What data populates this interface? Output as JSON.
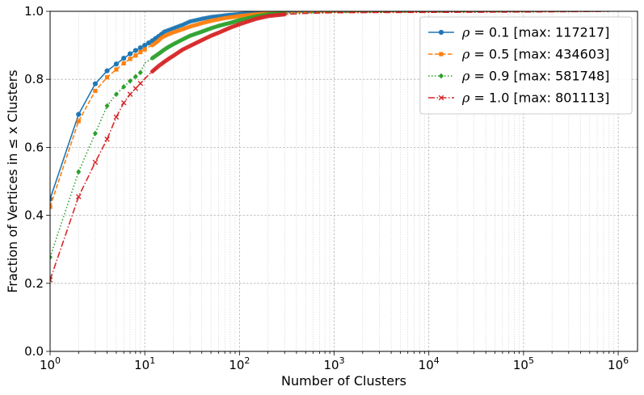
{
  "chart_data": {
    "type": "line",
    "xlabel": "Number of Clusters",
    "ylabel": "Fraction of Vertices in ≤ x Clusters",
    "xscale": "log",
    "xlim": [
      1,
      1600000
    ],
    "ylim": [
      0.0,
      1.0
    ],
    "grid": "major and minor",
    "legend_position": "top-right",
    "x_tick_labels": [
      {
        "base": "10",
        "exp": "0",
        "value": 1
      },
      {
        "base": "10",
        "exp": "1",
        "value": 10
      },
      {
        "base": "10",
        "exp": "2",
        "value": 100
      },
      {
        "base": "10",
        "exp": "3",
        "value": 1000
      },
      {
        "base": "10",
        "exp": "4",
        "value": 10000
      },
      {
        "base": "10",
        "exp": "5",
        "value": 100000
      },
      {
        "base": "10",
        "exp": "6",
        "value": 1000000
      }
    ],
    "y_ticks": [
      {
        "label": "0.0",
        "value": 0.0
      },
      {
        "label": "0.2",
        "value": 0.2
      },
      {
        "label": "0.4",
        "value": 0.4
      },
      {
        "label": "0.6",
        "value": 0.6
      },
      {
        "label": "0.8",
        "value": 0.8
      },
      {
        "label": "1.0",
        "value": 1.0
      }
    ],
    "series": [
      {
        "name": "ρ = 0.1 [max: 117217]",
        "legend_symbol": "ρ",
        "legend_rest": " = 0.1 [max: 117217]",
        "color": "#1f77b4",
        "dash": "solid",
        "marker": "circle",
        "points": [
          [
            1,
            0.448
          ],
          [
            2,
            0.697
          ],
          [
            3,
            0.787
          ],
          [
            4,
            0.825
          ],
          [
            5,
            0.845
          ],
          [
            6,
            0.862
          ],
          [
            7,
            0.875
          ],
          [
            8,
            0.885
          ],
          [
            9,
            0.893
          ],
          [
            10,
            0.9
          ],
          [
            11,
            0.907
          ],
          [
            12,
            0.913
          ],
          [
            13,
            0.92
          ],
          [
            14,
            0.926
          ],
          [
            15,
            0.932
          ],
          [
            16,
            0.94
          ],
          [
            18,
            0.945
          ],
          [
            20,
            0.95
          ],
          [
            25,
            0.96
          ],
          [
            30,
            0.97
          ],
          [
            40,
            0.978
          ],
          [
            50,
            0.983
          ],
          [
            70,
            0.988
          ],
          [
            100,
            0.992
          ],
          [
            150,
            0.995
          ],
          [
            200,
            0.997
          ],
          [
            500,
            0.998
          ],
          [
            1000,
            0.999
          ],
          [
            5000,
            0.9995
          ],
          [
            117217,
            1.0
          ]
        ],
        "marker_points": [
          [
            1,
            0.448
          ],
          [
            2,
            0.697
          ],
          [
            3,
            0.787
          ],
          [
            4,
            0.825
          ],
          [
            5,
            0.845
          ],
          [
            6,
            0.862
          ],
          [
            7,
            0.875
          ],
          [
            8,
            0.885
          ],
          [
            9,
            0.893
          ],
          [
            10,
            0.9
          ],
          [
            11,
            0.907
          ],
          [
            12,
            0.913
          ],
          [
            13,
            0.92
          ],
          [
            14,
            0.926
          ],
          [
            15,
            0.932
          ]
        ]
      },
      {
        "name": "ρ = 0.5 [max: 434603]",
        "legend_symbol": "ρ",
        "legend_rest": " = 0.5 [max: 434603]",
        "color": "#ff7f0e",
        "dash": "dashed",
        "marker": "square",
        "points": [
          [
            1,
            0.425
          ],
          [
            2,
            0.677
          ],
          [
            3,
            0.766
          ],
          [
            4,
            0.806
          ],
          [
            5,
            0.829
          ],
          [
            6,
            0.847
          ],
          [
            7,
            0.86
          ],
          [
            8,
            0.87
          ],
          [
            9,
            0.88
          ],
          [
            10,
            0.888
          ],
          [
            11,
            0.895
          ],
          [
            12,
            0.9
          ],
          [
            13,
            0.907
          ],
          [
            14,
            0.914
          ],
          [
            15,
            0.922
          ],
          [
            17,
            0.93
          ],
          [
            20,
            0.938
          ],
          [
            25,
            0.947
          ],
          [
            30,
            0.955
          ],
          [
            40,
            0.965
          ],
          [
            50,
            0.972
          ],
          [
            70,
            0.98
          ],
          [
            100,
            0.986
          ],
          [
            150,
            0.991
          ],
          [
            200,
            0.994
          ],
          [
            300,
            0.996
          ],
          [
            1000,
            0.998
          ],
          [
            10000,
            0.999
          ],
          [
            100000,
            0.9995
          ],
          [
            434603,
            1.0
          ]
        ],
        "marker_points": [
          [
            1,
            0.425
          ],
          [
            2,
            0.677
          ],
          [
            3,
            0.766
          ],
          [
            4,
            0.806
          ],
          [
            5,
            0.829
          ],
          [
            6,
            0.847
          ],
          [
            7,
            0.86
          ],
          [
            8,
            0.87
          ],
          [
            9,
            0.88
          ],
          [
            10,
            0.888
          ]
        ]
      },
      {
        "name": "ρ = 0.9 [max: 581748]",
        "legend_symbol": "ρ",
        "legend_rest": " = 0.9 [max: 581748]",
        "color": "#2ca02c",
        "dash": "dotted",
        "marker": "diamond",
        "points": [
          [
            1,
            0.277
          ],
          [
            2,
            0.528
          ],
          [
            3,
            0.641
          ],
          [
            4,
            0.722
          ],
          [
            5,
            0.756
          ],
          [
            6,
            0.778
          ],
          [
            7,
            0.795
          ],
          [
            8,
            0.808
          ],
          [
            9,
            0.82
          ],
          [
            10,
            0.848
          ],
          [
            12,
            0.862
          ],
          [
            14,
            0.875
          ],
          [
            16,
            0.887
          ],
          [
            18,
            0.896
          ],
          [
            20,
            0.903
          ],
          [
            25,
            0.917
          ],
          [
            30,
            0.928
          ],
          [
            40,
            0.94
          ],
          [
            50,
            0.95
          ],
          [
            60,
            0.957
          ],
          [
            70,
            0.962
          ],
          [
            80,
            0.966
          ],
          [
            100,
            0.974
          ],
          [
            150,
            0.985
          ],
          [
            200,
            0.991
          ],
          [
            300,
            0.994
          ],
          [
            1000,
            0.997
          ],
          [
            10000,
            0.998
          ],
          [
            100000,
            0.999
          ],
          [
            581748,
            1.0
          ]
        ],
        "marker_points": [
          [
            1,
            0.277
          ],
          [
            2,
            0.528
          ],
          [
            3,
            0.641
          ],
          [
            4,
            0.722
          ],
          [
            5,
            0.756
          ],
          [
            6,
            0.778
          ],
          [
            7,
            0.795
          ],
          [
            8,
            0.808
          ],
          [
            9,
            0.82
          ]
        ]
      },
      {
        "name": "ρ = 1.0 [max: 801113]",
        "legend_symbol": "ρ",
        "legend_rest": " = 1.0 [max: 801113]",
        "color": "#d62728",
        "dash": "dashdot",
        "marker": "x",
        "points": [
          [
            1,
            0.21
          ],
          [
            2,
            0.455
          ],
          [
            3,
            0.556
          ],
          [
            4,
            0.624
          ],
          [
            5,
            0.689
          ],
          [
            6,
            0.731
          ],
          [
            7,
            0.756
          ],
          [
            8,
            0.773
          ],
          [
            9,
            0.788
          ],
          [
            10,
            0.802
          ],
          [
            12,
            0.823
          ],
          [
            14,
            0.839
          ],
          [
            16,
            0.851
          ],
          [
            18,
            0.861
          ],
          [
            20,
            0.869
          ],
          [
            25,
            0.887
          ],
          [
            30,
            0.898
          ],
          [
            40,
            0.915
          ],
          [
            50,
            0.928
          ],
          [
            60,
            0.937
          ],
          [
            70,
            0.945
          ],
          [
            80,
            0.952
          ],
          [
            100,
            0.962
          ],
          [
            150,
            0.978
          ],
          [
            200,
            0.986
          ],
          [
            300,
            0.991
          ],
          [
            500,
            0.994
          ],
          [
            1000,
            0.996
          ],
          [
            10000,
            0.997
          ],
          [
            100000,
            0.998
          ],
          [
            801113,
            1.0
          ]
        ],
        "marker_points": [
          [
            1,
            0.21
          ],
          [
            2,
            0.455
          ],
          [
            3,
            0.556
          ],
          [
            4,
            0.624
          ],
          [
            5,
            0.689
          ],
          [
            6,
            0.731
          ],
          [
            7,
            0.756
          ],
          [
            8,
            0.773
          ],
          [
            9,
            0.788
          ]
        ]
      }
    ]
  }
}
